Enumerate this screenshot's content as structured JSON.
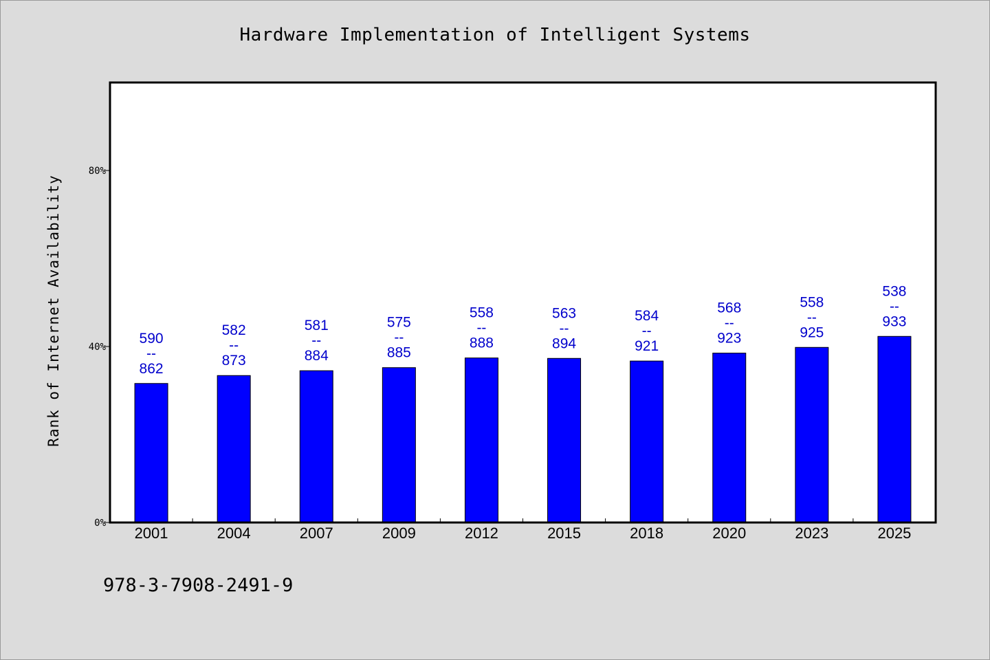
{
  "chart_data": {
    "type": "bar",
    "title": "Hardware Implementation of Intelligent Systems",
    "ylabel": "Rank of Internet Availability",
    "xlabel": "",
    "categories": [
      "2001",
      "2004",
      "2007",
      "2009",
      "2012",
      "2015",
      "2018",
      "2020",
      "2023",
      "2025"
    ],
    "values": [
      31.6,
      33.4,
      34.5,
      35.2,
      37.4,
      37.3,
      36.7,
      38.5,
      39.8,
      42.3
    ],
    "data_labels": [
      {
        "top": "590",
        "sep": "--",
        "bottom": "862"
      },
      {
        "top": "582",
        "sep": "--",
        "bottom": "873"
      },
      {
        "top": "581",
        "sep": "--",
        "bottom": "884"
      },
      {
        "top": "575",
        "sep": "--",
        "bottom": "885"
      },
      {
        "top": "558",
        "sep": "--",
        "bottom": "888"
      },
      {
        "top": "563",
        "sep": "--",
        "bottom": "894"
      },
      {
        "top": "584",
        "sep": "--",
        "bottom": "921"
      },
      {
        "top": "568",
        "sep": "--",
        "bottom": "923"
      },
      {
        "top": "558",
        "sep": "--",
        "bottom": "925"
      },
      {
        "top": "538",
        "sep": "--",
        "bottom": "933"
      }
    ],
    "ylim": [
      0,
      100
    ],
    "yticks": [
      0,
      40,
      80
    ],
    "ytick_labels": [
      "0%",
      "40%",
      "80%"
    ],
    "grid": false,
    "bar_color": "#0000ff",
    "label_color": "#0000cc"
  },
  "footer": {
    "isbn": "978-3-7908-2491-9"
  }
}
